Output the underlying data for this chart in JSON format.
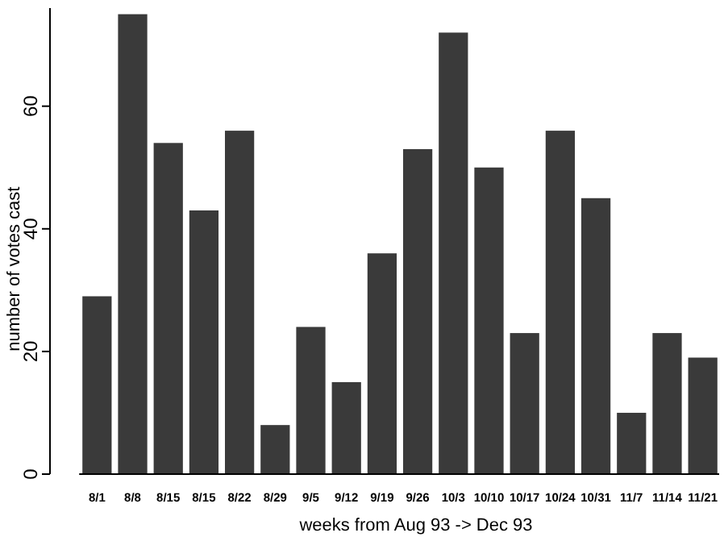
{
  "chart_data": {
    "type": "bar",
    "xlabel": "weeks from Aug 93 -> Dec 93",
    "ylabel": "number of votes cast",
    "categories": [
      "8/1",
      "8/8",
      "8/15",
      "8/15",
      "8/22",
      "8/29",
      "9/5",
      "9/12",
      "9/19",
      "9/26",
      "10/3",
      "10/10",
      "10/17",
      "10/24",
      "10/31",
      "11/7",
      "11/14",
      "11/21"
    ],
    "values": [
      29,
      75,
      54,
      43,
      56,
      8,
      24,
      15,
      36,
      53,
      72,
      50,
      23,
      56,
      45,
      10,
      23,
      19
    ],
    "color": "#3a3a3a",
    "ylim": [
      0,
      76
    ],
    "yticks": [
      0,
      20,
      40,
      60
    ],
    "grid": false
  }
}
